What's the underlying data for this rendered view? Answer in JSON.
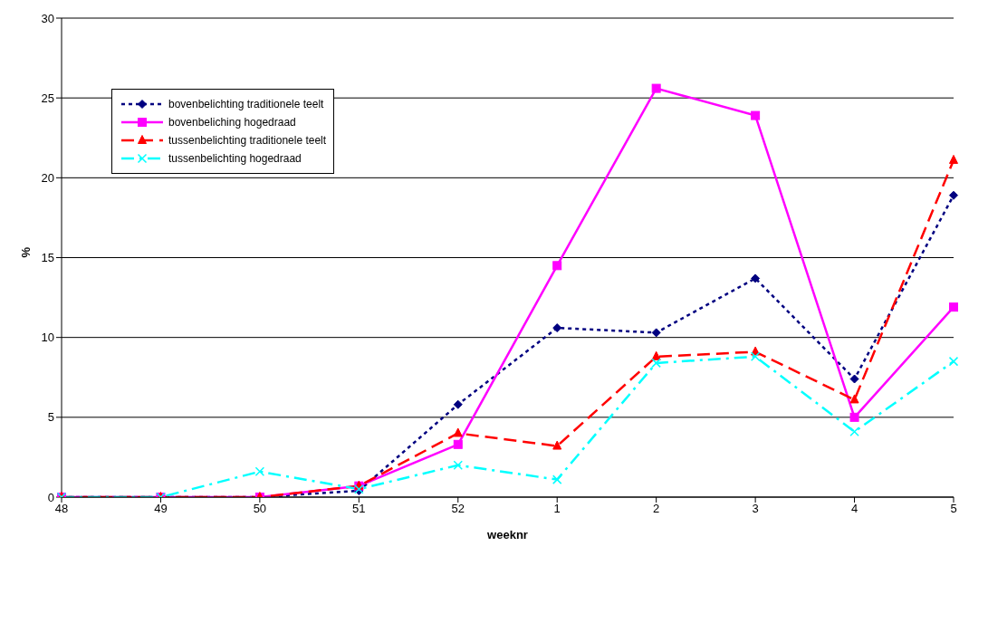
{
  "chart_data": {
    "type": "line",
    "xlabel": "weeknr",
    "ylabel": "%",
    "categories": [
      "48",
      "49",
      "50",
      "51",
      "52",
      "1",
      "2",
      "3",
      "4",
      "5"
    ],
    "series": [
      {
        "name": "bovenbelichting traditionele teelt",
        "color": "#000080",
        "marker": "diamond",
        "line_style": "dotted",
        "values": [
          0,
          0,
          0,
          0.4,
          5.8,
          10.6,
          10.3,
          13.7,
          7.4,
          18.9
        ]
      },
      {
        "name": "bovenbeliching hogedraad",
        "color": "#ff00ff",
        "marker": "square",
        "line_style": "solid",
        "values": [
          0,
          0,
          0,
          0.7,
          3.3,
          14.5,
          25.6,
          23.9,
          5.0,
          11.9
        ]
      },
      {
        "name": "tussenbelichting traditionele teelt",
        "color": "#ff0000",
        "marker": "triangle",
        "line_style": "dashed",
        "values": [
          0,
          0,
          0,
          0.7,
          4.0,
          3.2,
          8.8,
          9.1,
          6.1,
          21.1
        ]
      },
      {
        "name": "tussenbelichting hogedraad",
        "color": "#00ffff",
        "marker": "cross",
        "line_style": "dashdot",
        "values": [
          0,
          0,
          1.6,
          0.5,
          2.0,
          1.1,
          8.4,
          8.8,
          4.1,
          8.5
        ]
      }
    ],
    "ylim": [
      0,
      30
    ],
    "yticks": [
      0,
      5,
      10,
      15,
      20,
      25,
      30
    ],
    "grid": "y",
    "legend": "top left"
  }
}
